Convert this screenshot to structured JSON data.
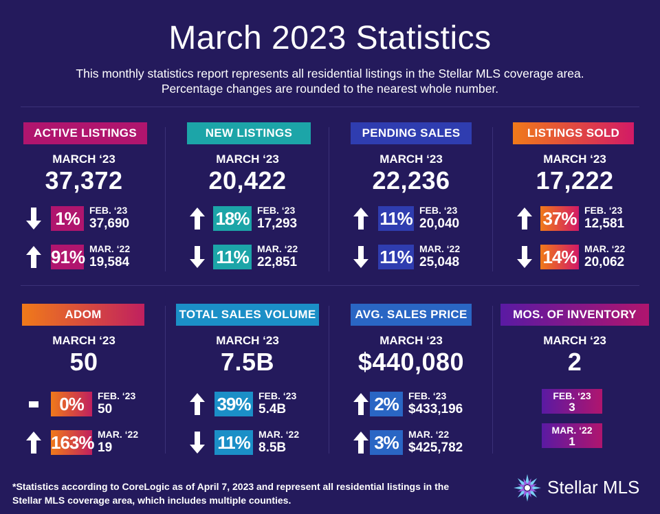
{
  "title": "March 2023 Statistics",
  "subtitle_line1": "This monthly statistics report represents all residential listings in the Stellar MLS coverage area.",
  "subtitle_line2": "Percentage changes are rounded to the nearest whole number.",
  "cards": [
    {
      "badge": "ACTIVE LISTINGS",
      "badge_color": "#b0156e",
      "period": "MARCH ‘23",
      "value": "37,372",
      "rows": [
        {
          "dir": "down",
          "pct": "1%",
          "label": "FEB. ‘23",
          "value": "37,690"
        },
        {
          "dir": "up",
          "pct": "91%",
          "label": "MAR. ‘22",
          "value": "19,584"
        }
      ]
    },
    {
      "badge": "NEW LISTINGS",
      "badge_color": "#1ca5a8",
      "period": "MARCH ‘23",
      "value": "20,422",
      "rows": [
        {
          "dir": "up",
          "pct": "18%",
          "label": "FEB. ‘23",
          "value": "17,293"
        },
        {
          "dir": "down",
          "pct": "11%",
          "label": "MAR. ‘22",
          "value": "22,851"
        }
      ]
    },
    {
      "badge": "PENDING SALES",
      "badge_color": "#2f3db0",
      "period": "MARCH ‘23",
      "value": "22,236",
      "rows": [
        {
          "dir": "up",
          "pct": "11%",
          "label": "FEB. ‘23",
          "value": "20,040"
        },
        {
          "dir": "down",
          "pct": "11%",
          "label": "MAR. ‘22",
          "value": "25,048"
        }
      ]
    },
    {
      "badge": "LISTINGS SOLD",
      "badge_color": "#e8571e",
      "period": "MARCH ‘23",
      "value": "17,222",
      "rows": [
        {
          "dir": "up",
          "pct": "37%",
          "label": "FEB. ‘23",
          "value": "12,581"
        },
        {
          "dir": "down",
          "pct": "14%",
          "label": "MAR. ‘22",
          "value": "20,062"
        }
      ]
    },
    {
      "badge": "ADOM",
      "badge_color": "#f07a1a",
      "period": "MARCH ‘23",
      "value": "50",
      "rows": [
        {
          "dir": "flat",
          "pct": "0%",
          "label": "FEB. ‘23",
          "value": "50"
        },
        {
          "dir": "up",
          "pct": "163%",
          "label": "MAR. ‘22",
          "value": "19"
        }
      ]
    },
    {
      "badge": "TOTAL SALES VOLUME",
      "badge_color": "#1b8fc7",
      "period": "MARCH ‘23",
      "value": "7.5B",
      "rows": [
        {
          "dir": "up",
          "pct": "39%",
          "label": "FEB. ‘23",
          "value": "5.4B"
        },
        {
          "dir": "down",
          "pct": "11%",
          "label": "MAR. ‘22",
          "value": "8.5B"
        }
      ]
    },
    {
      "badge": "AVG. SALES PRICE",
      "badge_color": "#2a66c4",
      "period": "MARCH ‘23",
      "value": "$440,080",
      "rows": [
        {
          "dir": "up",
          "pct": "2%",
          "label": "FEB. ‘23",
          "value": "$433,196"
        },
        {
          "dir": "up",
          "pct": "3%",
          "label": "MAR. ‘22",
          "value": "$425,782"
        }
      ]
    },
    {
      "badge": "MOS. OF INVENTORY",
      "badge_color": "#5a1aa3",
      "period": "MARCH ‘23",
      "value": "2",
      "boxes": [
        {
          "label": "FEB. ‘23",
          "value": "3"
        },
        {
          "label": "MAR. ‘22",
          "value": "1"
        }
      ]
    }
  ],
  "footer_line1": "*Statistics according to CoreLogic as of April 7, 2023 and represent all residential listings in the",
  "footer_line2": "Stellar MLS coverage area, which includes multiple counties.",
  "logo_text": "Stellar MLS",
  "colors": {
    "background": "#241a5c",
    "accent_pink": "#b0156e",
    "accent_teal": "#1ca5a8",
    "accent_blue": "#2f3db0",
    "accent_orange": "#e8571e",
    "accent_purple": "#5a1aa3"
  }
}
